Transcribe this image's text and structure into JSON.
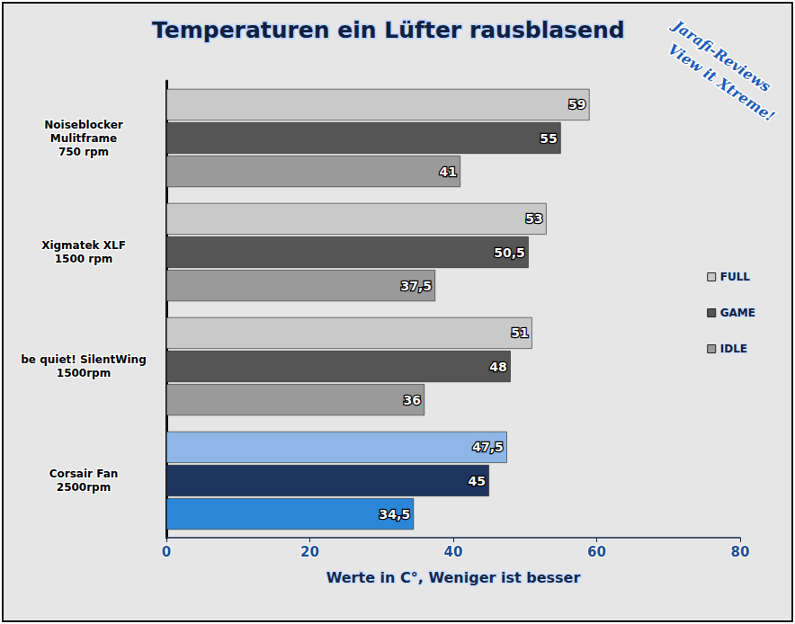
{
  "chart_data": {
    "type": "bar",
    "orientation": "horizontal",
    "title": "Temperaturen ein Lüfter rausblasend",
    "x_label": "Werte in C°, Weniger ist besser",
    "annotations": [
      "Jarafi-Reviews",
      "View it Xtreme!"
    ],
    "categories": [
      "Noiseblocker\nMulitframe\n750 rpm",
      "Xigmatek XLF\n1500 rpm",
      "be quiet! SilentWing\n1500rpm",
      "Corsair Fan\n2500rpm"
    ],
    "series": [
      {
        "name": "FULL",
        "color": "#c9c9c9",
        "colors": [
          "#c9c9c9",
          "#c9c9c9",
          "#c9c9c9",
          "#8fb6e6"
        ],
        "values": [
          59,
          53,
          51,
          47.5
        ],
        "value_labels": [
          "59",
          "53",
          "51",
          "47,5"
        ]
      },
      {
        "name": "GAME",
        "color": "#555555",
        "colors": [
          "#555555",
          "#555555",
          "#555555",
          "#1e3560"
        ],
        "values": [
          55,
          50.5,
          48,
          45
        ],
        "value_labels": [
          "55",
          "50,5",
          "48",
          "45"
        ]
      },
      {
        "name": "IDLE",
        "color": "#9a9a9a",
        "colors": [
          "#9a9a9a",
          "#9a9a9a",
          "#9a9a9a",
          "#2a86d6"
        ],
        "values": [
          41,
          37.5,
          36,
          34.5
        ],
        "value_labels": [
          "41",
          "37,5",
          "36",
          "34,5"
        ]
      }
    ],
    "xlim": [
      0,
      80
    ],
    "xticks": [
      0,
      20,
      40,
      60,
      80
    ],
    "grid": false,
    "legend": "right",
    "data_labels": true
  }
}
